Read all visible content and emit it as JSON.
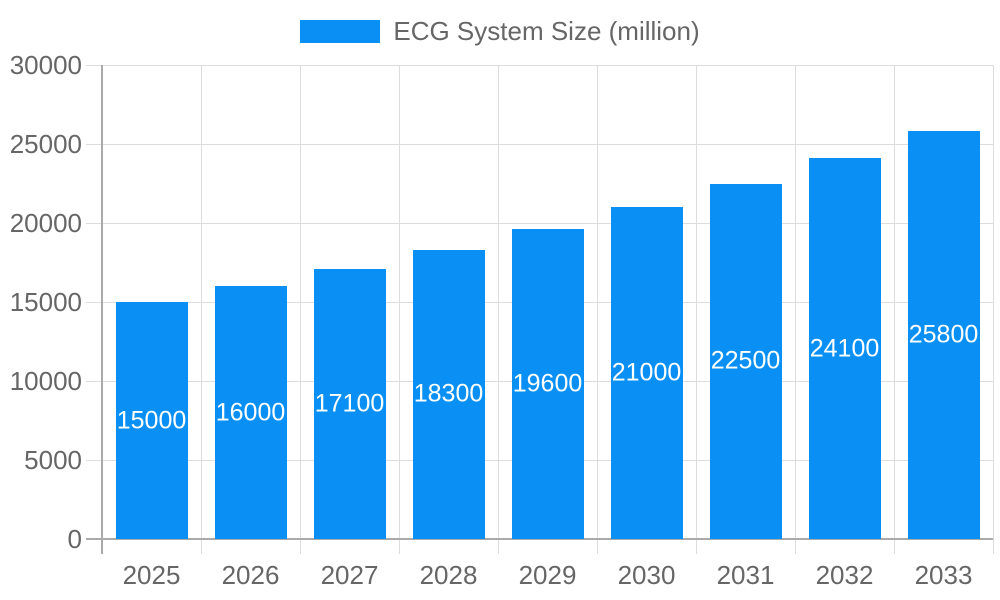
{
  "chart_data": {
    "type": "bar",
    "title": "",
    "legend": "ECG System Size (million)",
    "legend_position": "top-center",
    "categories": [
      "2025",
      "2026",
      "2027",
      "2028",
      "2029",
      "2030",
      "2031",
      "2032",
      "2033"
    ],
    "values": [
      15000,
      16000,
      17100,
      18300,
      19600,
      21000,
      22500,
      24100,
      25800
    ],
    "bar_value_labels": [
      "15000",
      "16000",
      "17100",
      "18300",
      "19600",
      "21000",
      "22500",
      "24100",
      "25800"
    ],
    "xlabel": "",
    "ylabel": "",
    "ylim": [
      0,
      30000
    ],
    "yticks": [
      0,
      5000,
      10000,
      15000,
      20000,
      25000,
      30000
    ],
    "ytick_labels": [
      "0",
      "5000",
      "10000",
      "15000",
      "20000",
      "25000",
      "30000"
    ],
    "grid": true
  },
  "colors": {
    "bar": "#0a90f5",
    "bar_label_text": "#ffffff",
    "axis_text": "#666666",
    "grid_line": "#dddddd",
    "axis_line": "#aaaaaa",
    "background": "#ffffff"
  }
}
